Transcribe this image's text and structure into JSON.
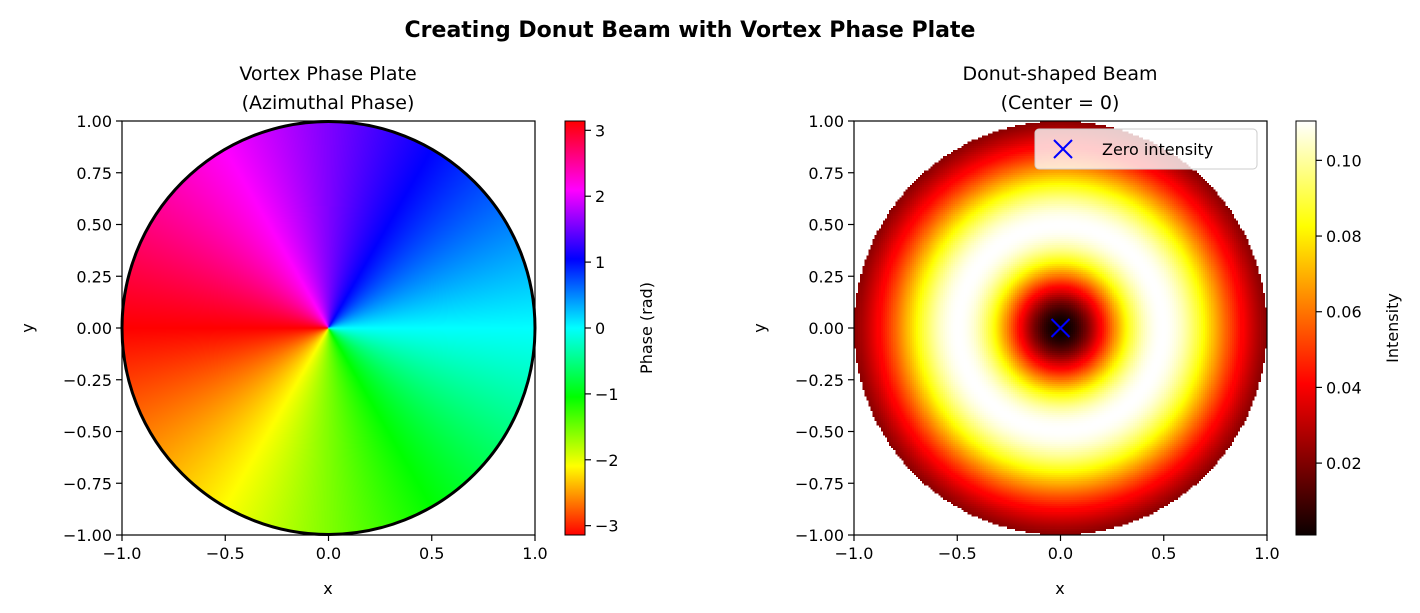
{
  "figure": {
    "title": "Creating Donut Beam with Vortex Phase Plate"
  },
  "chart_data": [
    {
      "type": "heatmap",
      "title_lines": [
        "Vortex Phase Plate",
        "(Azimuthal Phase)"
      ],
      "xlabel": "x",
      "ylabel": "y",
      "xlim": [
        -1.0,
        1.0
      ],
      "ylim": [
        -1.0,
        1.0
      ],
      "x_ticks": [
        -1.0,
        -0.5,
        0.0,
        0.5,
        1.0
      ],
      "x_tick_labels": [
        "−1.0",
        "−0.5",
        "0.0",
        "0.5",
        "1.0"
      ],
      "y_ticks": [
        1.0,
        0.75,
        0.5,
        0.25,
        0.0,
        -0.25,
        -0.5,
        -0.75,
        -1.0
      ],
      "y_tick_labels": [
        "1.00",
        "0.75",
        "0.50",
        "0.25",
        "0.00",
        "−0.25",
        "−0.50",
        "−0.75",
        "−1.00"
      ],
      "field": "phase = atan2(y, x), masked outside unit circle",
      "aperture_radius": 1.0,
      "aperture_outline": true,
      "colormap": "hsv",
      "colorbar": {
        "label": "Phase (rad)",
        "range": [
          -3.14159,
          3.14159
        ],
        "ticks": [
          3,
          2,
          1,
          0,
          -1,
          -2,
          -3
        ],
        "tick_labels": [
          "3",
          "2",
          "1",
          "0",
          "−1",
          "−2",
          "−3"
        ]
      }
    },
    {
      "type": "heatmap",
      "title_lines": [
        "Donut-shaped Beam",
        "(Center = 0)"
      ],
      "xlabel": "x",
      "ylabel": "y",
      "xlim": [
        -1.0,
        1.0
      ],
      "ylim": [
        -1.0,
        1.0
      ],
      "x_ticks": [
        -1.0,
        -0.5,
        0.0,
        0.5,
        1.0
      ],
      "x_tick_labels": [
        "−1.0",
        "−0.5",
        "0.0",
        "0.5",
        "1.0"
      ],
      "y_ticks": [
        1.0,
        0.75,
        0.5,
        0.25,
        0.0,
        -0.25,
        -0.5,
        -0.75,
        -1.0
      ],
      "y_tick_labels": [
        "1.00",
        "0.75",
        "0.50",
        "0.25",
        "0.00",
        "−0.25",
        "−0.50",
        "−0.75",
        "−1.00"
      ],
      "field": "intensity = r^2 * exp(-2 r^2 / w^2), masked outside unit circle",
      "beam_waist": 0.7,
      "aperture_radius": 1.0,
      "colormap": "hot",
      "marker": {
        "x": 0.0,
        "y": 0.0,
        "symbol": "x",
        "color": "#0000ff",
        "label": "Zero intensity"
      },
      "legend": {
        "position": "upper-right",
        "entries": [
          "Zero intensity"
        ]
      },
      "colorbar": {
        "label": "Intensity",
        "range": [
          0.001,
          0.1104
        ],
        "ticks": [
          0.1,
          0.08,
          0.06,
          0.04,
          0.02
        ],
        "tick_labels": [
          "0.10",
          "0.08",
          "0.06",
          "0.04",
          "0.02"
        ]
      }
    }
  ]
}
